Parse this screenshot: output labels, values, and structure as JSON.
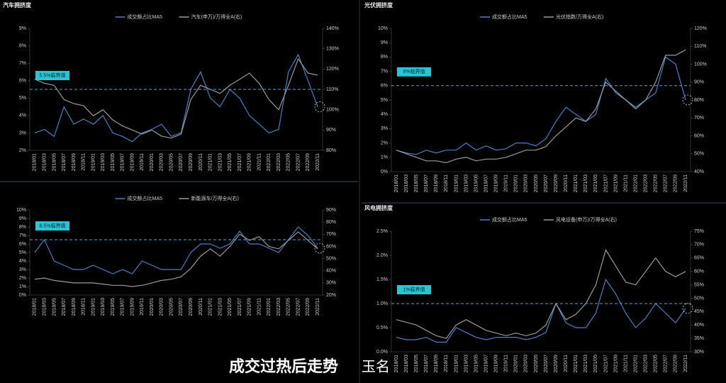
{
  "chart_data": [
    {
      "type": "line",
      "title": "汽车拥挤度",
      "categories": [
        "2018/01",
        "2018/03",
        "2018/05",
        "2018/07",
        "2018/09",
        "2018/11",
        "2019/01",
        "2019/03",
        "2019/05",
        "2019/07",
        "2019/09",
        "2019/11",
        "2020/01",
        "2020/03",
        "2020/05",
        "2020/07",
        "2020/09",
        "2020/11",
        "2021/01",
        "2021/03",
        "2021/05",
        "2021/07",
        "2021/09",
        "2021/11",
        "2022/01",
        "2022/03",
        "2022/05",
        "2022/07",
        "2022/09",
        "2022/11"
      ],
      "series": [
        {
          "name": "成交额占比MA5",
          "color": "#4a7fc1",
          "values": [
            3.0,
            3.2,
            2.8,
            4.5,
            3.5,
            3.8,
            3.5,
            4.0,
            3.0,
            2.8,
            2.5,
            3.0,
            3.2,
            3.5,
            2.8,
            3.0,
            5.5,
            6.5,
            5.0,
            4.5,
            5.5,
            5.0,
            4.0,
            3.5,
            3.0,
            3.2,
            6.5,
            7.5,
            6.0,
            4.5
          ]
        },
        {
          "name": "汽车(申万)/万得全A(右)",
          "color": "#9a9a9a",
          "axis": "y2",
          "values": [
            115,
            113,
            112,
            105,
            103,
            102,
            97,
            100,
            95,
            92,
            90,
            88,
            90,
            87,
            86,
            88,
            105,
            112,
            110,
            108,
            112,
            115,
            118,
            113,
            105,
            100,
            112,
            125,
            118,
            117
          ]
        }
      ],
      "ylim": [
        2,
        9
      ],
      "yticks": [
        {
          "value": 2,
          "label": "2%"
        },
        {
          "value": 3,
          "label": "3%"
        },
        {
          "value": 4,
          "label": "4%"
        },
        {
          "value": 5,
          "label": "5%"
        },
        {
          "value": 6,
          "label": "6%"
        },
        {
          "value": 7,
          "label": "7%"
        },
        {
          "value": 8,
          "label": "8%"
        },
        {
          "value": 9,
          "label": "9%"
        }
      ],
      "y2lim": [
        80,
        140
      ],
      "y2ticks": [
        {
          "value": 80,
          "label": "80%"
        },
        {
          "value": 90,
          "label": "90%"
        },
        {
          "value": 100,
          "label": "100%"
        },
        {
          "value": 110,
          "label": "110%"
        },
        {
          "value": 120,
          "label": "120%"
        },
        {
          "value": 130,
          "label": "130%"
        },
        {
          "value": 140,
          "label": "140%"
        }
      ],
      "annotations": [
        {
          "text": "5.5%临界值",
          "value": 5.5
        }
      ]
    },
    {
      "type": "line",
      "title": "光伏拥挤度",
      "categories": [
        "2018/01",
        "2018/03",
        "2018/05",
        "2018/07",
        "2018/09",
        "2018/11",
        "2019/01",
        "2019/03",
        "2019/05",
        "2019/07",
        "2019/09",
        "2019/11",
        "2020/01",
        "2020/03",
        "2020/05",
        "2020/07",
        "2020/09",
        "2020/11",
        "2021/01",
        "2021/03",
        "2021/05",
        "2021/07",
        "2021/09",
        "2021/11",
        "2022/01",
        "2022/03",
        "2022/05",
        "2022/07",
        "2022/09",
        "2022/11"
      ],
      "series": [
        {
          "name": "成交额占比MA5",
          "color": "#4a7fc1",
          "values": [
            1.5,
            1.3,
            1.2,
            1.5,
            1.3,
            1.5,
            1.5,
            2.0,
            1.5,
            1.8,
            1.5,
            1.6,
            2.0,
            2.0,
            1.8,
            2.3,
            3.5,
            4.5,
            4.0,
            3.5,
            4.0,
            6.5,
            5.5,
            5.0,
            4.5,
            5.0,
            5.5,
            8.0,
            7.5,
            5.0
          ]
        },
        {
          "name": "光伏指数/万得全A(右)",
          "color": "#9a9a9a",
          "axis": "y2",
          "values": [
            52,
            50,
            48,
            46,
            46,
            45,
            47,
            48,
            46,
            47,
            47,
            48,
            50,
            52,
            52,
            54,
            60,
            65,
            70,
            68,
            75,
            90,
            85,
            80,
            75,
            80,
            90,
            105,
            105,
            108
          ]
        }
      ],
      "ylim": [
        0,
        10
      ],
      "yticks": [
        {
          "value": 0,
          "label": "0%"
        },
        {
          "value": 1,
          "label": "1%"
        },
        {
          "value": 2,
          "label": "2%"
        },
        {
          "value": 3,
          "label": "3%"
        },
        {
          "value": 4,
          "label": "4%"
        },
        {
          "value": 5,
          "label": "5%"
        },
        {
          "value": 6,
          "label": "6%"
        },
        {
          "value": 7,
          "label": "7%"
        },
        {
          "value": 8,
          "label": "8%"
        },
        {
          "value": 9,
          "label": "9%"
        },
        {
          "value": 10,
          "label": "10%"
        }
      ],
      "y2lim": [
        40,
        120
      ],
      "y2ticks": [
        {
          "value": 40,
          "label": "40%"
        },
        {
          "value": 50,
          "label": "50%"
        },
        {
          "value": 60,
          "label": "60%"
        },
        {
          "value": 70,
          "label": "70%"
        },
        {
          "value": 80,
          "label": "80%"
        },
        {
          "value": 90,
          "label": "90%"
        },
        {
          "value": 100,
          "label": "100%"
        },
        {
          "value": 110,
          "label": "110%"
        },
        {
          "value": 120,
          "label": "120%"
        }
      ],
      "annotations": [
        {
          "text": "6%临界值",
          "value": 6
        }
      ]
    },
    {
      "type": "line",
      "categories": [
        "2018/01",
        "2018/03",
        "2018/05",
        "2018/07",
        "2018/09",
        "2018/11",
        "2019/01",
        "2019/03",
        "2019/05",
        "2019/07",
        "2019/09",
        "2019/11",
        "2020/01",
        "2020/03",
        "2020/05",
        "2020/07",
        "2020/09",
        "2020/11",
        "2021/01",
        "2021/03",
        "2021/05",
        "2021/07",
        "2021/09",
        "2021/11",
        "2022/01",
        "2022/03",
        "2022/05",
        "2022/07",
        "2022/09",
        "2022/11"
      ],
      "series": [
        {
          "name": "成交额占比MA5",
          "color": "#4a7fc1",
          "values": [
            5.0,
            6.5,
            4.0,
            3.5,
            3.0,
            3.0,
            3.5,
            3.0,
            2.5,
            3.0,
            2.5,
            4.0,
            3.5,
            3.0,
            3.0,
            3.0,
            5.0,
            6.0,
            6.0,
            5.5,
            6.0,
            7.5,
            6.0,
            6.0,
            5.5,
            5.0,
            6.5,
            8.0,
            7.0,
            5.5
          ]
        },
        {
          "name": "新能源车/万得全A(右)",
          "color": "#9a9a9a",
          "axis": "y2",
          "values": [
            33,
            34,
            32,
            31,
            30,
            30,
            30,
            29,
            28,
            28,
            27,
            28,
            30,
            32,
            33,
            35,
            42,
            52,
            58,
            52,
            60,
            70,
            65,
            68,
            60,
            58,
            65,
            72,
            65,
            58
          ]
        }
      ],
      "ylim": [
        0,
        10
      ],
      "yticks": [
        {
          "value": 0,
          "label": "0%"
        },
        {
          "value": 1,
          "label": "1%"
        },
        {
          "value": 2,
          "label": "2%"
        },
        {
          "value": 3,
          "label": "3%"
        },
        {
          "value": 4,
          "label": "4%"
        },
        {
          "value": 5,
          "label": "5%"
        },
        {
          "value": 6,
          "label": "6%"
        },
        {
          "value": 7,
          "label": "7%"
        },
        {
          "value": 8,
          "label": "8%"
        },
        {
          "value": 9,
          "label": "9%"
        },
        {
          "value": 10,
          "label": "10%"
        }
      ],
      "y2lim": [
        20,
        90
      ],
      "y2ticks": [
        {
          "value": 20,
          "label": "20%"
        },
        {
          "value": 30,
          "label": "30%"
        },
        {
          "value": 40,
          "label": "40%"
        },
        {
          "value": 50,
          "label": "50%"
        },
        {
          "value": 60,
          "label": "60%"
        },
        {
          "value": 70,
          "label": "70%"
        },
        {
          "value": 80,
          "label": "80%"
        },
        {
          "value": 90,
          "label": "90%"
        }
      ],
      "annotations": [
        {
          "text": "6.5%临界值",
          "value": 6.5
        }
      ]
    },
    {
      "type": "line",
      "title": "风电拥挤度",
      "categories": [
        "2018/01",
        "2018/03",
        "2018/05",
        "2018/07",
        "2018/09",
        "2018/11",
        "2019/01",
        "2019/03",
        "2019/05",
        "2019/07",
        "2019/09",
        "2019/11",
        "2020/01",
        "2020/03",
        "2020/05",
        "2020/07",
        "2020/09",
        "2020/11",
        "2021/01",
        "2021/03",
        "2021/05",
        "2021/07",
        "2021/09",
        "2021/11",
        "2022/01",
        "2022/03",
        "2022/05",
        "2022/07",
        "2022/09",
        "2022/11"
      ],
      "series": [
        {
          "name": "成交额占比MA5",
          "color": "#4a7fc1",
          "values": [
            0.3,
            0.25,
            0.25,
            0.3,
            0.2,
            0.2,
            0.5,
            0.4,
            0.3,
            0.25,
            0.3,
            0.3,
            0.3,
            0.25,
            0.3,
            0.4,
            1.0,
            0.6,
            0.5,
            0.5,
            0.8,
            1.5,
            1.2,
            0.8,
            0.5,
            0.7,
            1.0,
            0.8,
            0.6,
            0.9
          ]
        },
        {
          "name": "风电设备(申万)/万得全A(右)",
          "color": "#9a9a9a",
          "axis": "y2",
          "values": [
            42,
            41,
            40,
            38,
            36,
            35,
            40,
            42,
            40,
            38,
            37,
            36,
            37,
            36,
            37,
            40,
            48,
            42,
            44,
            48,
            55,
            68,
            62,
            56,
            55,
            60,
            65,
            60,
            58,
            60
          ]
        }
      ],
      "ylim": [
        0,
        2.5
      ],
      "yticks": [
        {
          "value": 0,
          "label": "0.0%"
        },
        {
          "value": 0.5,
          "label": "0.5%"
        },
        {
          "value": 1,
          "label": "1.0%"
        },
        {
          "value": 1.5,
          "label": "1.5%"
        },
        {
          "value": 2,
          "label": "2.0%"
        },
        {
          "value": 2.5,
          "label": "2.5%"
        }
      ],
      "y2lim": [
        30,
        75
      ],
      "y2ticks": [
        {
          "value": 30,
          "label": "30%"
        },
        {
          "value": 35,
          "label": "35%"
        },
        {
          "value": 40,
          "label": "40%"
        },
        {
          "value": 45,
          "label": "45%"
        },
        {
          "value": 50,
          "label": "50%"
        },
        {
          "value": 55,
          "label": "55%"
        },
        {
          "value": 60,
          "label": "60%"
        },
        {
          "value": 65,
          "label": "65%"
        },
        {
          "value": 70,
          "label": "70%"
        },
        {
          "value": 75,
          "label": "75%"
        }
      ],
      "annotations": [
        {
          "text": "1%临界值",
          "value": 1
        }
      ]
    }
  ],
  "caption": "成交过热后走势",
  "watermark": "玉名"
}
